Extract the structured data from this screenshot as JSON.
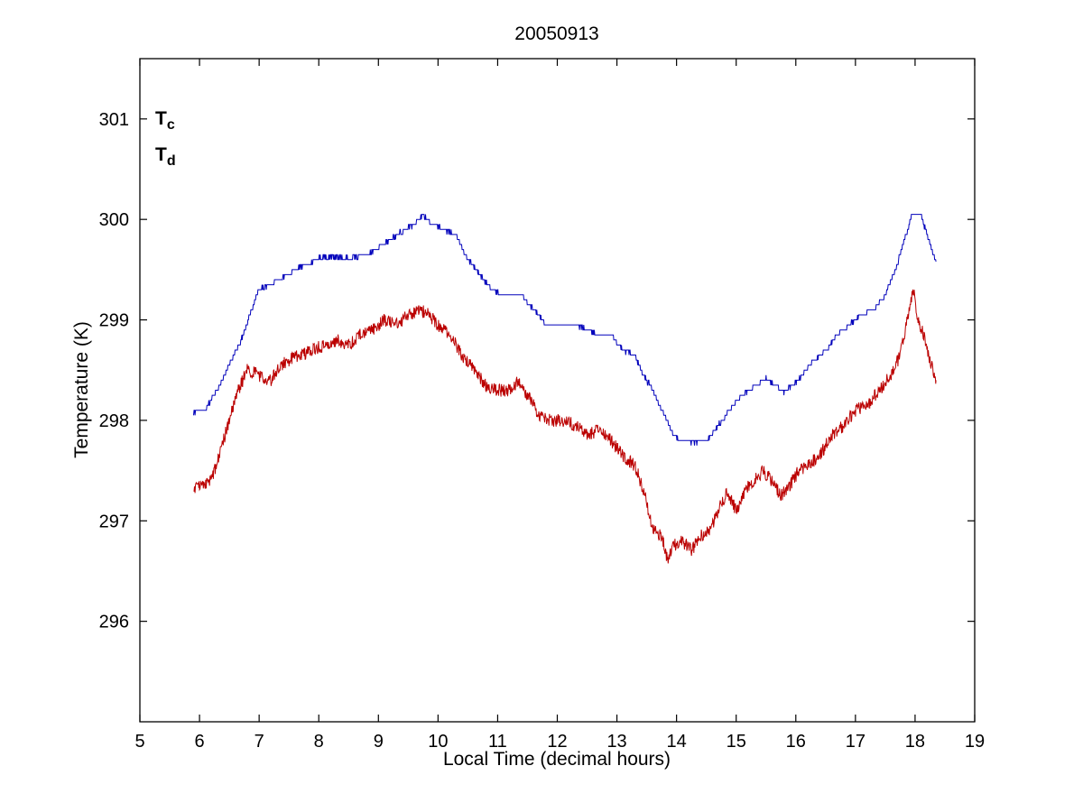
{
  "title": "20050913",
  "chart_data": {
    "type": "line",
    "title": "20050913",
    "xlabel": "Local Time (decimal hours)",
    "ylabel": "Temperature (K)",
    "xlim": [
      5,
      19
    ],
    "ylim": [
      295.0,
      301.6
    ],
    "xticks": [
      5,
      6,
      7,
      8,
      9,
      10,
      11,
      12,
      13,
      14,
      15,
      16,
      17,
      18,
      19
    ],
    "yticks": [
      296,
      297,
      298,
      299,
      300,
      301
    ],
    "grid": false,
    "legend_position": "top-left-inside",
    "series": [
      {
        "name": "Tc",
        "legend_base": "T",
        "legend_sub": "c",
        "color": "#0000bb",
        "noise": 0.015,
        "quantize": 0.05,
        "points": [
          [
            5.9,
            298.08
          ],
          [
            6.1,
            298.12
          ],
          [
            6.3,
            298.3
          ],
          [
            6.5,
            298.55
          ],
          [
            6.7,
            298.8
          ],
          [
            6.9,
            299.15
          ],
          [
            7.0,
            299.3
          ],
          [
            7.2,
            299.35
          ],
          [
            7.4,
            299.42
          ],
          [
            7.6,
            299.5
          ],
          [
            7.8,
            299.55
          ],
          [
            8.0,
            299.62
          ],
          [
            8.3,
            299.62
          ],
          [
            8.6,
            299.62
          ],
          [
            8.8,
            299.65
          ],
          [
            9.0,
            299.72
          ],
          [
            9.2,
            299.8
          ],
          [
            9.4,
            299.88
          ],
          [
            9.6,
            299.95
          ],
          [
            9.75,
            300.05
          ],
          [
            9.9,
            299.95
          ],
          [
            10.1,
            299.9
          ],
          [
            10.3,
            299.85
          ],
          [
            10.5,
            299.6
          ],
          [
            10.7,
            299.45
          ],
          [
            10.9,
            299.3
          ],
          [
            11.1,
            299.25
          ],
          [
            11.4,
            299.25
          ],
          [
            11.6,
            299.1
          ],
          [
            11.7,
            299.05
          ],
          [
            11.8,
            298.95
          ],
          [
            12.0,
            298.95
          ],
          [
            12.3,
            298.95
          ],
          [
            12.5,
            298.9
          ],
          [
            12.7,
            298.85
          ],
          [
            12.9,
            298.85
          ],
          [
            13.1,
            298.7
          ],
          [
            13.3,
            298.65
          ],
          [
            13.4,
            298.5
          ],
          [
            13.6,
            298.3
          ],
          [
            13.8,
            298.05
          ],
          [
            13.95,
            297.85
          ],
          [
            14.1,
            297.8
          ],
          [
            14.3,
            297.78
          ],
          [
            14.5,
            297.8
          ],
          [
            14.7,
            297.95
          ],
          [
            14.9,
            298.1
          ],
          [
            15.0,
            298.2
          ],
          [
            15.2,
            298.3
          ],
          [
            15.35,
            298.35
          ],
          [
            15.5,
            298.42
          ],
          [
            15.65,
            298.35
          ],
          [
            15.8,
            298.28
          ],
          [
            15.95,
            298.35
          ],
          [
            16.1,
            298.45
          ],
          [
            16.3,
            298.6
          ],
          [
            16.5,
            298.7
          ],
          [
            16.7,
            298.85
          ],
          [
            16.9,
            298.95
          ],
          [
            17.1,
            299.05
          ],
          [
            17.3,
            299.1
          ],
          [
            17.5,
            299.25
          ],
          [
            17.7,
            299.55
          ],
          [
            17.85,
            299.85
          ],
          [
            17.95,
            300.05
          ],
          [
            18.1,
            300.05
          ],
          [
            18.2,
            299.85
          ],
          [
            18.35,
            299.58
          ]
        ]
      },
      {
        "name": "Td",
        "legend_base": "T",
        "legend_sub": "d",
        "color": "#bb0000",
        "noise": 0.065,
        "quantize": 0,
        "points": [
          [
            5.9,
            297.3
          ],
          [
            6.0,
            297.35
          ],
          [
            6.2,
            297.4
          ],
          [
            6.35,
            297.7
          ],
          [
            6.5,
            298.0
          ],
          [
            6.65,
            298.3
          ],
          [
            6.8,
            298.5
          ],
          [
            7.0,
            298.45
          ],
          [
            7.2,
            298.4
          ],
          [
            7.35,
            298.55
          ],
          [
            7.5,
            298.6
          ],
          [
            7.7,
            298.65
          ],
          [
            7.9,
            298.7
          ],
          [
            8.1,
            298.75
          ],
          [
            8.3,
            298.8
          ],
          [
            8.5,
            298.75
          ],
          [
            8.7,
            298.85
          ],
          [
            8.9,
            298.9
          ],
          [
            9.1,
            299.0
          ],
          [
            9.3,
            298.95
          ],
          [
            9.5,
            299.05
          ],
          [
            9.7,
            299.1
          ],
          [
            9.85,
            299.05
          ],
          [
            10.0,
            298.95
          ],
          [
            10.2,
            298.85
          ],
          [
            10.4,
            298.65
          ],
          [
            10.6,
            298.5
          ],
          [
            10.8,
            298.35
          ],
          [
            11.0,
            298.3
          ],
          [
            11.2,
            298.3
          ],
          [
            11.35,
            298.4
          ],
          [
            11.5,
            298.25
          ],
          [
            11.7,
            298.05
          ],
          [
            11.9,
            298.0
          ],
          [
            12.1,
            298.0
          ],
          [
            12.3,
            297.95
          ],
          [
            12.5,
            297.85
          ],
          [
            12.7,
            297.9
          ],
          [
            12.9,
            297.8
          ],
          [
            13.1,
            297.65
          ],
          [
            13.3,
            297.55
          ],
          [
            13.45,
            297.3
          ],
          [
            13.6,
            296.9
          ],
          [
            13.75,
            296.85
          ],
          [
            13.85,
            296.6
          ],
          [
            13.95,
            296.75
          ],
          [
            14.1,
            296.8
          ],
          [
            14.25,
            296.7
          ],
          [
            14.4,
            296.85
          ],
          [
            14.55,
            296.9
          ],
          [
            14.7,
            297.1
          ],
          [
            14.85,
            297.3
          ],
          [
            15.0,
            297.1
          ],
          [
            15.15,
            297.3
          ],
          [
            15.3,
            297.4
          ],
          [
            15.45,
            297.5
          ],
          [
            15.6,
            297.4
          ],
          [
            15.75,
            297.25
          ],
          [
            15.9,
            297.35
          ],
          [
            16.05,
            297.5
          ],
          [
            16.2,
            297.55
          ],
          [
            16.4,
            297.65
          ],
          [
            16.6,
            297.85
          ],
          [
            16.8,
            297.95
          ],
          [
            17.0,
            298.1
          ],
          [
            17.2,
            298.15
          ],
          [
            17.4,
            298.3
          ],
          [
            17.6,
            298.45
          ],
          [
            17.75,
            298.65
          ],
          [
            17.9,
            299.1
          ],
          [
            17.97,
            299.3
          ],
          [
            18.05,
            299.0
          ],
          [
            18.15,
            298.85
          ],
          [
            18.25,
            298.6
          ],
          [
            18.35,
            298.4
          ]
        ]
      }
    ]
  }
}
